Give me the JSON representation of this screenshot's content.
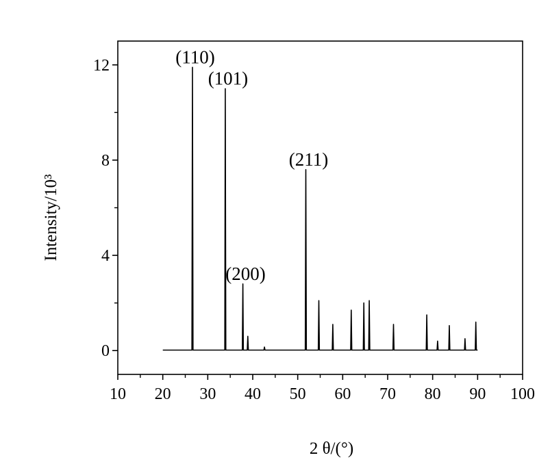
{
  "chart_data": {
    "type": "line",
    "title": "",
    "xlabel": "2 θ/(°)",
    "ylabel": "Intensity/10³",
    "xlim": [
      10,
      100
    ],
    "ylim": [
      -1.0,
      13.0
    ],
    "x_ticks": [
      10,
      20,
      30,
      40,
      50,
      60,
      70,
      80,
      90,
      100
    ],
    "x_tick_labels": [
      "10",
      "20",
      "30",
      "40",
      "50",
      "60",
      "70",
      "80",
      "90",
      "100"
    ],
    "y_ticks": [
      0,
      4,
      8,
      12
    ],
    "y_tick_labels": [
      "0",
      "4",
      "8",
      "12"
    ],
    "grid": false,
    "baseline": 0.02,
    "x_range": [
      20,
      90
    ],
    "color": "#000000",
    "peaks": [
      {
        "x": 26.6,
        "y": 11.9
      },
      {
        "x": 33.9,
        "y": 11.0
      },
      {
        "x": 37.8,
        "y": 2.8
      },
      {
        "x": 38.9,
        "y": 0.6
      },
      {
        "x": 42.6,
        "y": 0.15
      },
      {
        "x": 51.8,
        "y": 7.6
      },
      {
        "x": 54.7,
        "y": 2.1
      },
      {
        "x": 57.8,
        "y": 1.1
      },
      {
        "x": 61.9,
        "y": 1.7
      },
      {
        "x": 64.7,
        "y": 2.0
      },
      {
        "x": 65.9,
        "y": 2.1
      },
      {
        "x": 71.3,
        "y": 1.1
      },
      {
        "x": 78.7,
        "y": 1.5
      },
      {
        "x": 81.1,
        "y": 0.4
      },
      {
        "x": 83.7,
        "y": 1.05
      },
      {
        "x": 87.2,
        "y": 0.5
      },
      {
        "x": 89.6,
        "y": 1.2
      }
    ],
    "annotations": [
      {
        "text": "(110)",
        "x": 26.6,
        "y": 11.9
      },
      {
        "text": "(101)",
        "x": 33.9,
        "y": 11.0
      },
      {
        "text": "(200)",
        "x": 37.8,
        "y": 2.8
      },
      {
        "text": "(211)",
        "x": 51.8,
        "y": 7.6
      }
    ]
  }
}
